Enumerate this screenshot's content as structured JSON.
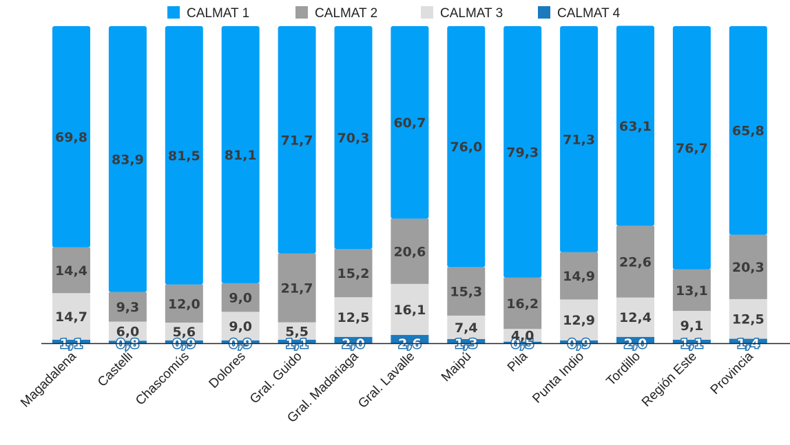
{
  "chart_data": {
    "type": "bar",
    "stacked": true,
    "categories": [
      "Magadalena",
      "Castelli",
      "Chascomús",
      "Dolores",
      "Gral. Guido",
      "Gral. Madariaga",
      "Gral. Lavalle",
      "Maipú",
      "Pila",
      "Punta Indio",
      "Tordillo",
      "Región Este",
      "Provincia"
    ],
    "series": [
      {
        "name": "CALMAT 1",
        "color": "#03a0f8",
        "values": [
          69.8,
          83.9,
          81.5,
          81.1,
          71.7,
          70.3,
          60.7,
          76.0,
          79.3,
          71.3,
          63.1,
          76.7,
          65.8
        ],
        "labels": [
          "69,8",
          "83,9",
          "81,5",
          "81,1",
          "71,7",
          "70,3",
          "60,7",
          "76,0",
          "79,3",
          "71,3",
          "63,1",
          "76,7",
          "65,8"
        ]
      },
      {
        "name": "CALMAT 2",
        "color": "#9e9e9e",
        "values": [
          14.4,
          9.3,
          12.0,
          9.0,
          21.7,
          15.2,
          20.6,
          15.3,
          16.2,
          14.9,
          22.6,
          13.1,
          20.3
        ],
        "labels": [
          "14,4",
          "9,3",
          "12,0",
          "9,0",
          "21,7",
          "15,2",
          "20,6",
          "15,3",
          "16,2",
          "14,9",
          "22,6",
          "13,1",
          "20,3"
        ]
      },
      {
        "name": "CALMAT 3",
        "color": "#dedede",
        "values": [
          14.7,
          6.0,
          5.6,
          9.0,
          5.5,
          12.5,
          16.1,
          7.4,
          4.0,
          12.9,
          12.4,
          9.1,
          12.5
        ],
        "labels": [
          "14,7",
          "6,0",
          "5,6",
          "9,0",
          "5,5",
          "12,5",
          "16,1",
          "7,4",
          "4,0",
          "12,9",
          "12,4",
          "9,1",
          "12,5"
        ]
      },
      {
        "name": "CALMAT 4",
        "color": "#1a7abd",
        "values": [
          1.1,
          0.8,
          0.9,
          0.9,
          1.1,
          2.0,
          2.6,
          1.3,
          0.5,
          0.9,
          2.0,
          1.1,
          1.4
        ],
        "labels": [
          "1,1",
          "0,8",
          "0,9",
          "0,9",
          "1,1",
          "2,0",
          "2,6",
          "1,3",
          "0,5",
          "0,9",
          "2,0",
          "1,1",
          "1,4"
        ]
      }
    ],
    "ylim": [
      0,
      100
    ],
    "legend_position": "top",
    "grid": false
  }
}
